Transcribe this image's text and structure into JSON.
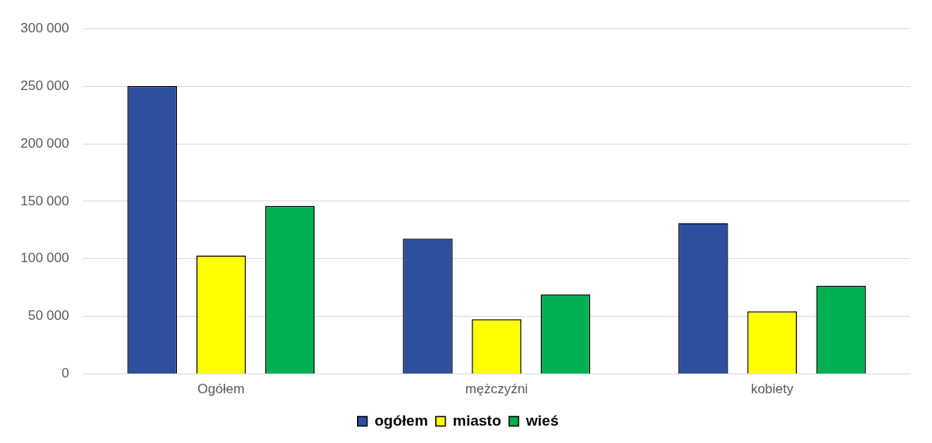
{
  "chart_data": {
    "type": "bar",
    "categories": [
      "Ogółem",
      "mężczyźni",
      "kobiety"
    ],
    "series": [
      {
        "name": "ogółem",
        "color": "#2e4f9e",
        "values": [
          250000,
          117500,
          131000
        ]
      },
      {
        "name": "miasto",
        "color": "#ffff00",
        "values": [
          103000,
          47500,
          54500
        ]
      },
      {
        "name": "wieś",
        "color": "#00b050",
        "values": [
          146000,
          69000,
          76500
        ]
      }
    ],
    "ylim": [
      0,
      300000
    ],
    "yticks": [
      {
        "value": 0,
        "label": "0"
      },
      {
        "value": 50000,
        "label": "50 000"
      },
      {
        "value": 100000,
        "label": "100 000"
      },
      {
        "value": 150000,
        "label": "150 000"
      },
      {
        "value": 200000,
        "label": "200 000"
      },
      {
        "value": 250000,
        "label": "250 000"
      },
      {
        "value": 300000,
        "label": "300 000"
      }
    ],
    "grid": "y",
    "legend": "bottom"
  }
}
